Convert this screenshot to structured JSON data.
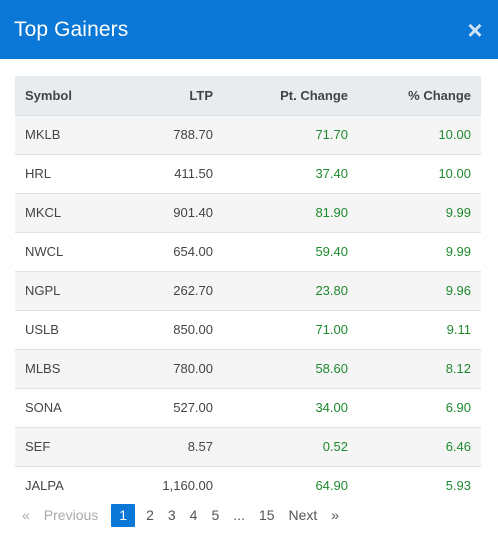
{
  "modal": {
    "title": "Top Gainers",
    "close_glyph": "×"
  },
  "table": {
    "headers": {
      "symbol": "Symbol",
      "ltp": "LTP",
      "pt_change": "Pt. Change",
      "pct_change": "% Change"
    },
    "rows": [
      {
        "symbol": "MKLB",
        "ltp": "788.70",
        "pt_change": "71.70",
        "pct_change": "10.00"
      },
      {
        "symbol": "HRL",
        "ltp": "411.50",
        "pt_change": "37.40",
        "pct_change": "10.00"
      },
      {
        "symbol": "MKCL",
        "ltp": "901.40",
        "pt_change": "81.90",
        "pct_change": "9.99"
      },
      {
        "symbol": "NWCL",
        "ltp": "654.00",
        "pt_change": "59.40",
        "pct_change": "9.99"
      },
      {
        "symbol": "NGPL",
        "ltp": "262.70",
        "pt_change": "23.80",
        "pct_change": "9.96"
      },
      {
        "symbol": "USLB",
        "ltp": "850.00",
        "pt_change": "71.00",
        "pct_change": "9.11"
      },
      {
        "symbol": "MLBS",
        "ltp": "780.00",
        "pt_change": "58.60",
        "pct_change": "8.12"
      },
      {
        "symbol": "SONA",
        "ltp": "527.00",
        "pt_change": "34.00",
        "pct_change": "6.90"
      },
      {
        "symbol": "SEF",
        "ltp": "8.57",
        "pt_change": "0.52",
        "pct_change": "6.46"
      },
      {
        "symbol": "JALPA",
        "ltp": "1,160.00",
        "pt_change": "64.90",
        "pct_change": "5.93"
      }
    ]
  },
  "pagination": {
    "first_glyph": "«",
    "previous": "Previous",
    "pages": [
      "1",
      "2",
      "3",
      "4",
      "5"
    ],
    "ellipsis": "...",
    "last_page": "15",
    "next": "Next",
    "last_glyph": "»",
    "current": "1"
  },
  "colors": {
    "header_bg": "#0b77d6",
    "positive": "#1e8a2e",
    "active_page": "#0b77d6"
  }
}
